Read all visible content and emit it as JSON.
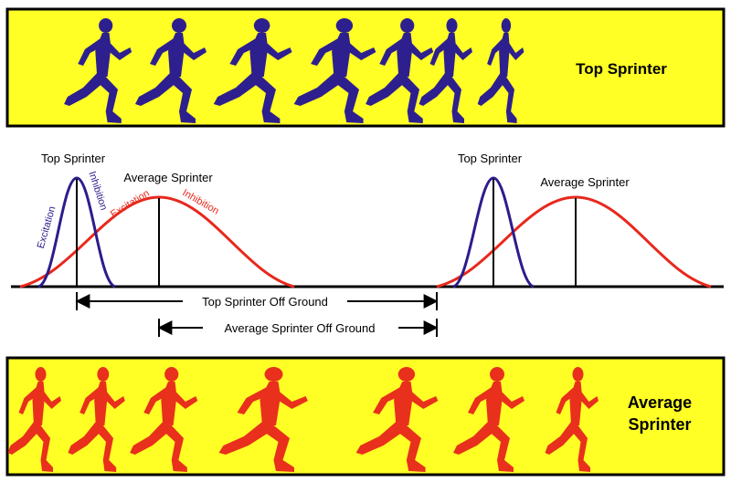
{
  "top_panel": {
    "label": "Top Sprinter",
    "background": "#ffff26",
    "figure_color": "#2e1f8f",
    "figure_icon": "running-figure-icon"
  },
  "bottom_panel": {
    "label_line1": "Average",
    "label_line2": "Sprinter",
    "background": "#ffff26",
    "figure_color": "#e8301c",
    "figure_icon": "running-figure-icon"
  },
  "curves": {
    "top_color": "#2b1d8c",
    "average_color": "#e8281c",
    "left": {
      "top_label": "Top Sprinter",
      "average_label": "Average Sprinter",
      "top_excitation": "Excitation",
      "top_inhibition": "Inhibition",
      "average_excitation": "Excitation",
      "average_inhibition": "Inhibition"
    },
    "right": {
      "top_label": "Top Sprinter",
      "average_label": "Average Sprinter"
    }
  },
  "arrows": {
    "top_off_ground": "Top Sprinter Off Ground",
    "average_off_ground": "Average Sprinter Off Ground"
  }
}
